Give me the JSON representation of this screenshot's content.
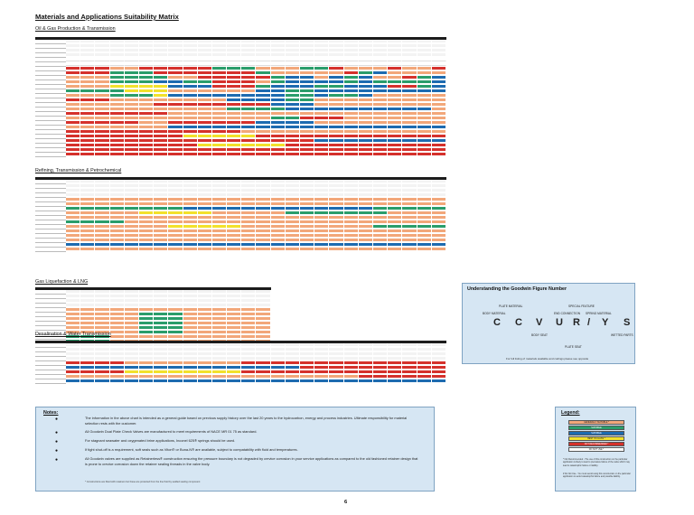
{
  "page": {
    "title": "Materials and Applications Suitability Matrix",
    "page_number": "6"
  },
  "sections": [
    {
      "id": "oil",
      "title": "Oil & Gas Production & Transmission"
    },
    {
      "id": "refining",
      "title": "Refining, Transmission & Petrochemical"
    },
    {
      "id": "lng",
      "title": "Gas Liquefaction & LNG"
    },
    {
      "id": "desal",
      "title": "Desalination & Water Transmission"
    }
  ],
  "colors": {
    "o": "#f2a77a",
    "g": "#2a9d6b",
    "b": "#1d6bb0",
    "r": "#d5312c",
    "y": "#f2e12c",
    "w": "#ffffff",
    "k": "#1c1c1c",
    "h": "#f3f3f3"
  },
  "figure_number": {
    "title": "Understanding the Goodwin Figure Number",
    "letters": [
      "C",
      "C",
      "V",
      "U",
      "R",
      "/",
      "Y",
      "S"
    ],
    "labels": {
      "plate_material": "PLATE MATERIAL",
      "body_material": "BODY MATERIAL",
      "special_feature": "SPECIAL FEATURE",
      "end_connection": "END CONNECTION",
      "spring_material": "SPRING MATERIAL",
      "body_seat": "BODY SEAT",
      "wetted_parts": "WETTED PARTS",
      "plate_seat": "PLATE SEAT"
    },
    "footer": "For full listing of materials available and codings please see opposite"
  },
  "notes": {
    "title": "Notes:",
    "items": [
      "The information in the above chart is intended as a general guide based on previous supply history over the last 20 years to the hydrocarbon, energy and process industries. Ultimate responsibility for material selection rests with the customer.",
      "All Goodwin Dual Plate Check Valves are manufactured to meet requirements of NACE MR 01 75 as standard.",
      "For stagnant seawater and oxygenated brine applications, Inconel 625® springs should be used.",
      "If tight shut-off is a requirement, soft seals such as Viton® or Buna-N® are available, subject to compatability with fluid and temperatures.",
      "All Goodwin valves are supplied as Retainerless® construction ensuring the pressure boundary is not degraded by crevice corrosion in your service applications as compared to the old fashioned retainer design that is prone to crevice corrosion down the retainer sealing threads in the valve body."
    ],
    "footnote": "* Constructions are fitted with retainers but these are protected from the line fluid by welded sealing component"
  },
  "legend": {
    "title": "Legend:",
    "items": [
      {
        "label": "GENERALLY SUITABLE *",
        "color": "#f2a77a"
      },
      {
        "label": "SUITABLE",
        "color": "#2a9d6b"
      },
      {
        "label": "SUITABLE",
        "color": "#1d6bb0"
      },
      {
        "label": "BEST IN CLASS *",
        "color": "#f2e12c"
      },
      {
        "label": "NOT RECOMMENDED *",
        "color": "#d5312c"
      },
      {
        "label": "DO NOT USE *",
        "color": "#ffffff"
      }
    ],
    "notes": [
      "* Not Recommended - The use of this construction on the particular application is likely to lead to premature failure of the valve which may lead to catastrophic failure or liability.",
      "# Do Not Use - You must avoid using this construction on the particular application to avoid catastrophic failure and possible liability."
    ]
  },
  "matrices": [
    {
      "id": "oil",
      "rows": [
        "HHHHHHHHHHHHHHHHHHHHHHHHHH",
        "HHHHHHHHHHHHHHHHHHHHHHHHHH",
        "HHHHHHHHHHHHHHHHHHHHHHHHHH",
        "HHHHHHHHHHHHHHHHHHHHHHHHHH",
        "wwwwwwwwwwwwwwwwwwwwwwwwww",
        "wwwwwwwwwwwwwwwwwwwwwwwwww",
        "rrroorrrrrgggoooggroooroorr",
        "rrrgggrrrrrrrgooooorgboooor",
        "oooggggoorrrrrgbbobgboorgboo",
        "ooogggbbggrrrogbbbbgbggggbrr",
        "oooyyyybbbrrrgbbbggbbbrrgbbo",
        "ggggyyyoooooobbggbbbbbbbbbbo",
        "ooogggybbbbbbbbggbggboooooooo",
        "rrroooooooobbbbggooooooooooo",
        "oooooorrrrrrrrbbboooooooooooo",
        "oooooooooooggggbbbbbbbbbbooo",
        "rrrrrrroooooooooooooooooooooo",
        "ooooooooooooooggrrroooooooooo",
        "rrrrroorrrrrrbbbboooooooooooo",
        "ooooooobbbbbbbbbbbbbbbbbbbboo",
        "rrrrrrrrrrrroooooooooooooooo",
        "rrrrrrrryyyyyrrrrrrrrrrrrrrrr",
        "rrrrrrrrrrrrrrrrrbbbbbbbbbbr",
        "rrrrrrrrryyyyyyrrrrrrrrrrrrr",
        "rrrrrrrrrrrrrrrrrrrrrrrrrrrrr",
        "rrrrrrrrrrrrrrrrrrrrrrrrrrrrr"
      ]
    },
    {
      "id": "refining",
      "rows": [
        "HHHHHHHHHHHHHHHHHHHHHHHHHH",
        "HHHHHHHHHHHHHHHHHHHHHHHHHH",
        "HHHHHHHHHHHHHHHHHHHHHHHHHH",
        "HHHHHHHHHHHHHHHHHHHHHHHHHH",
        "ooooooooooooooooooooooooooo",
        "oooooooooooooooooooooooooo",
        "ggggggggbbbbbbbbbbbbbgggggg",
        "oooooyyyyyooooogggggggoooooo",
        "ooooooooooooooooooooooooooo",
        "ggggoooooooooooooooooooooooo",
        "oooooooyyyyyooooooooogggggoo",
        "oooooooooooooooooooooooooooo",
        "oooooooooooooooooooooooooooo",
        "oooooooooooooooooooooooooooo",
        "bbbbbbbbbbbbbbbbbbbbbbbbbbbb",
        "oooooooooooooooooooooooooooo"
      ]
    },
    {
      "id": "lng",
      "rows": [
        "HHHHHHHHHHHHHH",
        "HHHHHHHHHHHHHH",
        "HHHHHHHHHHHHHH",
        "HHHHHHHHHHHHHH",
        "oooooooooooooo",
        "ooooogggooooooo",
        "ooooogggooooooo",
        "ooooogggooooooo",
        "ooooogggooooooo",
        "ooooogggooooooo",
        "gggoooooooooooo",
        "gggoooooooooooo",
        "ooooooooooooooo"
      ]
    },
    {
      "id": "desal",
      "rows": [
        "HHHHHHHHHHHHHHHHHHHHHHHHHH",
        "HHHHHHHHHHHHHHHHHHHHHHHHHH",
        "HHHHHHHHHHHHHHHHHHHHHHHHHH",
        "HHHHHHHHHHHHHHHHHHHHHHHHHH",
        "rrrroooooooorrrrrrrrrrrrrrr",
        "bbbbbbbbbbbbbbbbrrrrrrrrrrrr",
        "rrrryyyyyyyyrrrrrrrrrrrrrrrr",
        "oooooooooooooooooooorrrrrrrr",
        "bbbbbbbbbbbbbbbbbbbbbbbbbbbb"
      ]
    }
  ]
}
